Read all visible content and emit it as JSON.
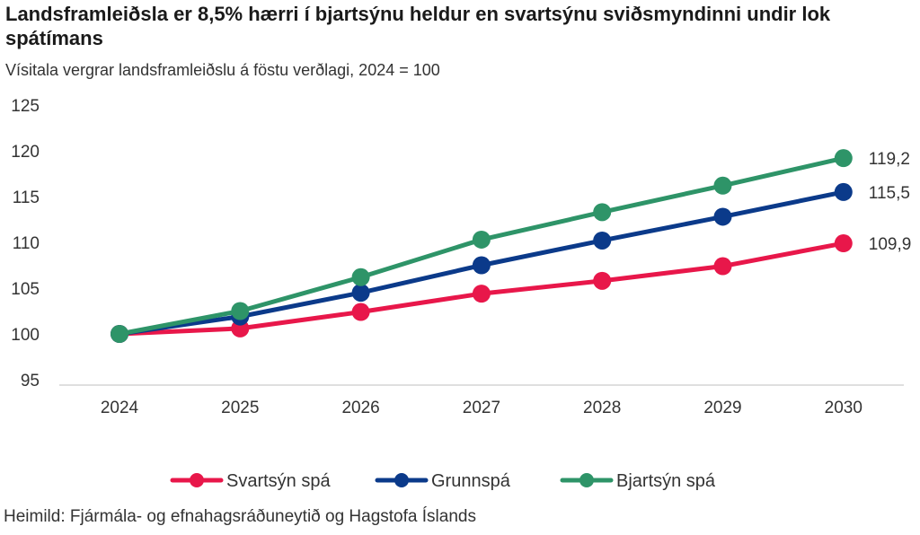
{
  "chart_data": {
    "type": "line",
    "title": "Landsframleiðsla er 8,5% hærri í bjartsýnu heldur en svartsýnu sviðsmyndinni undir lok spátímans",
    "subtitle": "Vísitala vergrar landsframleiðslu á föstu verðlagi, 2024 = 100",
    "xlabel": "",
    "ylabel": "",
    "categories": [
      "2024",
      "2025",
      "2026",
      "2027",
      "2028",
      "2029",
      "2030"
    ],
    "ylim": [
      95,
      125
    ],
    "yticks": [
      "95",
      "100",
      "105",
      "110",
      "115",
      "120",
      "125"
    ],
    "grid": false,
    "legend_position": "bottom",
    "series": [
      {
        "name": "Svartsýn spá",
        "color": "#e8174a",
        "values": [
          100,
          100.6,
          102.4,
          104.4,
          105.8,
          107.4,
          109.9
        ],
        "end_label": "109,9"
      },
      {
        "name": "Grunnspá",
        "color": "#0b3a8a",
        "values": [
          100,
          101.9,
          104.5,
          107.5,
          110.2,
          112.8,
          115.5
        ],
        "end_label": "115,5"
      },
      {
        "name": "Bjartsýn spá",
        "color": "#2e9468",
        "values": [
          100,
          102.5,
          106.2,
          110.3,
          113.3,
          116.2,
          119.2
        ],
        "end_label": "119,2"
      }
    ]
  },
  "source": "Heimild: Fjármála- og efnahagsráðuneytið og Hagstofa Íslands"
}
